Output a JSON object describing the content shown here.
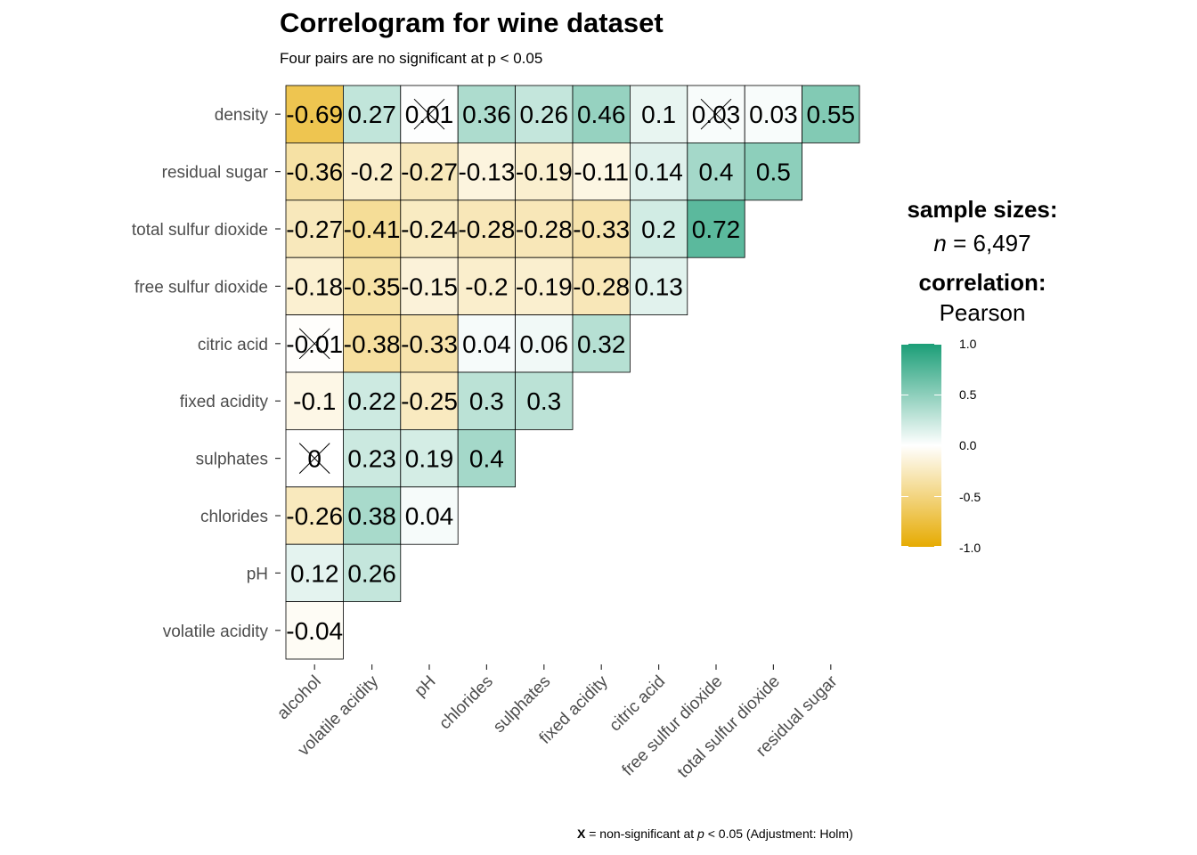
{
  "title": "Correlogram for wine dataset",
  "subtitle": "Four pairs are no significant at p < 0.05",
  "legend": {
    "sample_title": "sample sizes:",
    "sample_n_symbol": "n",
    "sample_n_value": " = 6,497",
    "corr_title": "correlation:",
    "corr_method": "Pearson",
    "ticks": [
      "1.0",
      "0.5",
      "0.0",
      "-0.5",
      "-1.0"
    ],
    "colors": {
      "high": "#1b9e77",
      "mid": "#ffffff",
      "low": "#e6ab02"
    }
  },
  "caption": {
    "marker": "X",
    "text_a": " = non-significant at ",
    "p": "p",
    "text_b": " < 0.05 (Adjustment: Holm)"
  },
  "chart_data": {
    "type": "heatmap",
    "x_labels": [
      "alcohol",
      "volatile acidity",
      "pH",
      "chlorides",
      "sulphates",
      "fixed acidity",
      "citric acid",
      "free sulfur dioxide",
      "total sulfur dioxide",
      "residual sugar"
    ],
    "y_labels": [
      "density",
      "residual sugar",
      "total sulfur dioxide",
      "free sulfur dioxide",
      "citric acid",
      "fixed acidity",
      "sulphates",
      "chlorides",
      "pH",
      "volatile acidity"
    ],
    "values": [
      [
        -0.69,
        0.27,
        0.01,
        0.36,
        0.26,
        0.46,
        0.1,
        0.03,
        0.03,
        0.55
      ],
      [
        -0.36,
        -0.2,
        -0.27,
        -0.13,
        -0.19,
        -0.11,
        0.14,
        0.4,
        0.5
      ],
      [
        -0.27,
        -0.41,
        -0.24,
        -0.28,
        -0.28,
        -0.33,
        0.2,
        0.72
      ],
      [
        -0.18,
        -0.35,
        -0.15,
        -0.2,
        -0.19,
        -0.28,
        0.13
      ],
      [
        -0.01,
        -0.38,
        -0.33,
        0.04,
        0.06,
        0.32
      ],
      [
        -0.1,
        0.22,
        -0.25,
        0.3,
        0.3
      ],
      [
        0,
        0.23,
        0.19,
        0.4
      ],
      [
        -0.26,
        0.38,
        0.04
      ],
      [
        0.12,
        0.26
      ],
      [
        -0.04
      ]
    ],
    "labels": [
      [
        "-0.69",
        "0.27",
        "0.01",
        "0.36",
        "0.26",
        "0.46",
        "0.1",
        "0.03",
        "0.03",
        "0.55"
      ],
      [
        "-0.36",
        "-0.2",
        "-0.27",
        "-0.13",
        "-0.19",
        "-0.11",
        "0.14",
        "0.4",
        "0.5"
      ],
      [
        "-0.27",
        "-0.41",
        "-0.24",
        "-0.28",
        "-0.28",
        "-0.33",
        "0.2",
        "0.72"
      ],
      [
        "-0.18",
        "-0.35",
        "-0.15",
        "-0.2",
        "-0.19",
        "-0.28",
        "0.13"
      ],
      [
        "-0.01",
        "-0.38",
        "-0.33",
        "0.04",
        "0.06",
        "0.32"
      ],
      [
        "-0.1",
        "0.22",
        "-0.25",
        "0.3",
        "0.3"
      ],
      [
        "0",
        "0.23",
        "0.19",
        "0.4"
      ],
      [
        "-0.26",
        "0.38",
        "0.04"
      ],
      [
        "0.12",
        "0.26"
      ],
      [
        "-0.04"
      ]
    ],
    "non_significant": [
      {
        "row": 0,
        "col": 2
      },
      {
        "row": 0,
        "col": 7
      },
      {
        "row": 4,
        "col": 0
      },
      {
        "row": 6,
        "col": 0
      }
    ],
    "color_range": [
      -1,
      1
    ]
  }
}
